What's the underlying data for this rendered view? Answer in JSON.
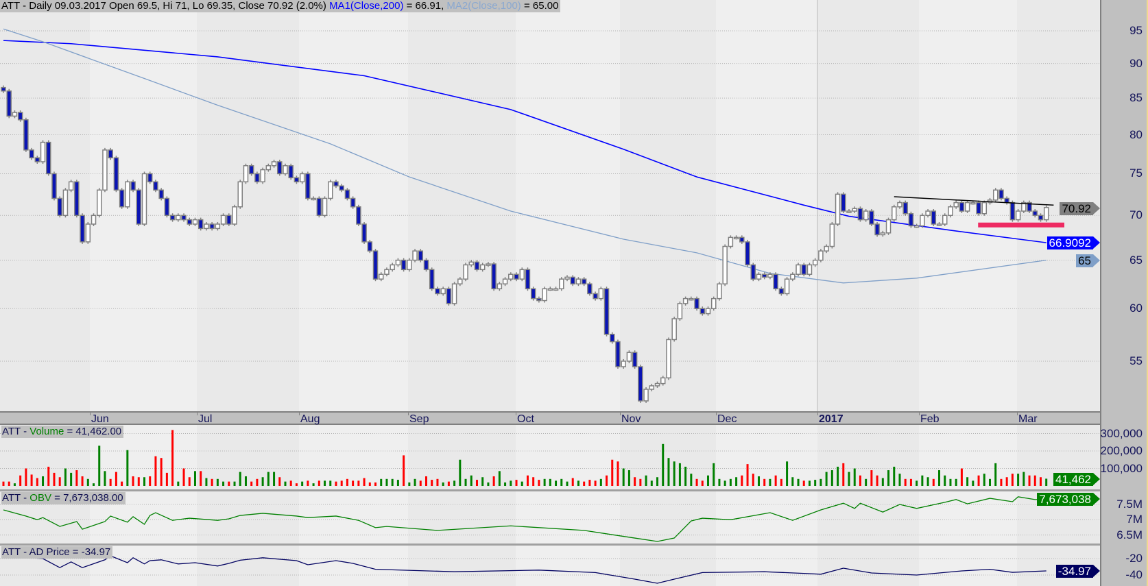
{
  "header": {
    "prefix": "ATT - Daily 09.03.2017 Open 69.5, Hi 71, Lo 69.35, Close 70.92 (2.0%) ",
    "ma1_label": "MA1(Close,200)",
    "ma1_value": " = 66.91, ",
    "ma2_label": "MA2(Close,100)",
    "ma2_value": " = 65.00"
  },
  "months": [
    "Jun",
    "Jul",
    "Aug",
    "Sep",
    "Oct",
    "Nov",
    "Dec",
    "2017",
    "Feb",
    "Mar"
  ],
  "price_axis": {
    "ticks": [
      "95",
      "90",
      "85",
      "80",
      "75",
      "70",
      "65",
      "60",
      "55"
    ]
  },
  "markers": {
    "close": "70.92",
    "ma1": "66.9092",
    "ma2": "65"
  },
  "volume_panel": {
    "prefix": "ATT - ",
    "name": "Volume",
    "value": " = 41,462.00",
    "ticks": [
      "300,000",
      "200,000",
      "100,000"
    ],
    "marker": "41,462"
  },
  "obv_panel": {
    "prefix": "ATT - ",
    "name": "OBV",
    "value": " = 7,673,038.00",
    "ticks": [
      "7.5M",
      "7M",
      "6.5M"
    ],
    "marker": "7,673,038"
  },
  "ad_panel": {
    "title": "ATT - AD Price = -34.97",
    "ticks": [
      "-20",
      "-40"
    ],
    "marker": "-34.97"
  },
  "colors": {
    "down_candle": "#0a14b4",
    "up_candle": "#ffffff",
    "ma1": "#0000ff",
    "ma2": "#7f9fc8",
    "vol_up": "#008000",
    "vol_down": "#ff0000",
    "obv": "#008000",
    "ad": "#000060",
    "support_zone": "#ee2a62",
    "trendline": "#000000"
  },
  "chart_data": [
    {
      "type": "candlestick",
      "title": "ATT - Daily",
      "yscale": "log",
      "ylim": [
        51,
        96
      ],
      "grid": true,
      "open": [
        86.5,
        86,
        82.5,
        83,
        82,
        78,
        77,
        76.5,
        79,
        75,
        72,
        70,
        73,
        74,
        70,
        67,
        69,
        70,
        73,
        78,
        77,
        73,
        71,
        74,
        73,
        69,
        75,
        74,
        73,
        72,
        70,
        69.5,
        70,
        69.5,
        69,
        69.5,
        68.5,
        69,
        68.5,
        69,
        70,
        69,
        71,
        74,
        76,
        75,
        74,
        75.5,
        76,
        76.5,
        75,
        76,
        74.5,
        74,
        75,
        72,
        72,
        70,
        72,
        74,
        73.5,
        73,
        72,
        71,
        69,
        67,
        66,
        63,
        63.5,
        64,
        64.5,
        65,
        64,
        65,
        66,
        65,
        64,
        62,
        61.5,
        62,
        60.5,
        62.5,
        63,
        64.5,
        64.8,
        64,
        64.5,
        64.6,
        62,
        62.5,
        63,
        63.5,
        63,
        64,
        62,
        61,
        60.8,
        62,
        62,
        62,
        63,
        63.2,
        62.5,
        63,
        62.5,
        61.5,
        61,
        62,
        57.5,
        56.8,
        54.5,
        55,
        55.8,
        54.5,
        51.5,
        52.5,
        52.8,
        53,
        53.5,
        57,
        59,
        60.5,
        61,
        61,
        60,
        59.5,
        60,
        61,
        62.5,
        66.5,
        67.5,
        67.5,
        67,
        64.5,
        63,
        63.5,
        63.2,
        63.5,
        62,
        61.5,
        63,
        63.5,
        64.5,
        63.5,
        64.5,
        65,
        66,
        66.5,
        69,
        72.5,
        70.5,
        70.5,
        70.8,
        69.5,
        70.5,
        69,
        67.8,
        68,
        69.5,
        71,
        71.5,
        70.2,
        68.8,
        68.8,
        70,
        70.5,
        69,
        69,
        70,
        71,
        71.5,
        70.5,
        71.5,
        71.5,
        70.2,
        71.5,
        71.8,
        73,
        72,
        71.5,
        69.5,
        70.5,
        71.5,
        70.5,
        70,
        69.5
      ],
      "close": [
        86,
        82.5,
        83,
        82,
        78,
        77,
        76.5,
        79,
        75,
        72,
        70,
        73,
        74,
        70,
        67,
        69,
        70,
        73,
        78,
        77,
        73,
        71,
        74,
        73,
        69,
        75,
        74,
        73,
        72,
        70,
        69.5,
        70,
        69.5,
        69,
        69.5,
        68.5,
        69,
        68.5,
        69,
        70,
        69,
        71,
        74,
        76,
        75,
        74,
        75.5,
        76,
        76.5,
        75,
        76,
        74.5,
        74,
        75,
        72,
        72,
        70,
        72,
        74,
        73.5,
        73,
        72,
        71,
        69,
        67,
        66,
        63,
        63.5,
        64,
        64.5,
        65,
        64,
        65,
        66,
        65,
        64,
        62,
        61.5,
        62,
        60.5,
        62.5,
        63,
        64.5,
        64.8,
        64,
        64.5,
        64.6,
        62,
        62.5,
        63,
        63.5,
        63,
        64,
        62,
        61,
        60.8,
        62,
        62,
        62,
        63,
        63.2,
        62.5,
        63,
        62.5,
        61.5,
        61,
        62,
        57.5,
        56.8,
        54.5,
        55,
        55.8,
        54.5,
        51.5,
        52.5,
        52.8,
        53,
        53.5,
        57,
        59,
        60.5,
        61,
        61,
        60,
        59.5,
        60,
        61,
        62.5,
        66.5,
        67.5,
        67.5,
        67,
        64.5,
        63,
        63.5,
        63.2,
        63.5,
        62,
        61.5,
        63,
        63.5,
        64.5,
        63.5,
        64.5,
        65,
        66,
        66.5,
        69,
        72.5,
        70.5,
        70.5,
        70.8,
        69.5,
        70.5,
        69,
        67.8,
        68,
        69.5,
        71,
        71.5,
        70.2,
        68.8,
        68.8,
        70,
        70.5,
        69,
        69,
        70,
        71,
        71.5,
        70.5,
        71.5,
        71.5,
        70.2,
        71.5,
        71.8,
        73,
        72,
        71.5,
        69.5,
        70.5,
        71.5,
        70.5,
        70,
        69.5,
        70.92
      ],
      "series": [
        {
          "name": "MA1(Close,200)",
          "points": [
            [
              0,
              93.5
            ],
            [
              12,
              93.0
            ],
            [
              38,
              91.0
            ],
            [
              64,
              88.2
            ],
            [
              90,
              83.4
            ],
            [
              110,
              78.1
            ],
            [
              123,
              74.6
            ],
            [
              142,
              71.2
            ],
            [
              150,
              69.9
            ],
            [
              168,
              68.3
            ],
            [
              185,
              66.91
            ]
          ]
        },
        {
          "name": "MA2(Close,100)",
          "points": [
            [
              0,
              95.3
            ],
            [
              7,
              93.3
            ],
            [
              25,
              87.8
            ],
            [
              38,
              84.0
            ],
            [
              58,
              78.8
            ],
            [
              72,
              74.6
            ],
            [
              90,
              70.5
            ],
            [
              110,
              67.3
            ],
            [
              123,
              65.8
            ],
            [
              136,
              63.6
            ],
            [
              149,
              62.6
            ],
            [
              162,
              63.1
            ],
            [
              185,
              65.0
            ]
          ]
        }
      ],
      "annotations": {
        "trendline": [
          [
            158,
            72.2
          ],
          [
            186.3,
            71.2
          ]
        ],
        "support_zone": {
          "from": 172.9,
          "to": 188.2,
          "price": 68.9
        }
      }
    },
    {
      "type": "bar",
      "title": "Volume",
      "ylim": [
        0,
        330000
      ],
      "unit": "thousands",
      "values": [
        25,
        25,
        15,
        60,
        100,
        65,
        45,
        55,
        110,
        75,
        50,
        100,
        75,
        90,
        55,
        40,
        15,
        230,
        85,
        40,
        80,
        25,
        205,
        55,
        50,
        50,
        55,
        170,
        160,
        75,
        320,
        25,
        100,
        50,
        85,
        85,
        45,
        40,
        40,
        25,
        25,
        25,
        80,
        55,
        25,
        40,
        50,
        80,
        80,
        50,
        25,
        30,
        15,
        25,
        30,
        15,
        30,
        30,
        30,
        25,
        30,
        40,
        30,
        30,
        45,
        20,
        20,
        40,
        40,
        40,
        35,
        175,
        20,
        40,
        30,
        55,
        35,
        40,
        20,
        25,
        30,
        150,
        40,
        60,
        35,
        50,
        20,
        55,
        85,
        20,
        30,
        35,
        25,
        60,
        50,
        35,
        40,
        40,
        30,
        40,
        25,
        45,
        30,
        25,
        35,
        30,
        40,
        60,
        150,
        140,
        100,
        90,
        50,
        40,
        60,
        30,
        50,
        240,
        160,
        140,
        130,
        110,
        70,
        40,
        30,
        60,
        130,
        40,
        30,
        40,
        50,
        60,
        125,
        70,
        55,
        40,
        40,
        60,
        40,
        140,
        50,
        40,
        30,
        30,
        35,
        40,
        80,
        90,
        110,
        130,
        80,
        100,
        60,
        40,
        90,
        60,
        45,
        90,
        110,
        70,
        40,
        40,
        30,
        60,
        50,
        40,
        90,
        60,
        40,
        40,
        100,
        50,
        30,
        60,
        70,
        40,
        130,
        40,
        50,
        70,
        70,
        80,
        60,
        60,
        50,
        41.462
      ]
    },
    {
      "type": "line",
      "title": "OBV",
      "unit": "millions",
      "points": [
        [
          0,
          7.32
        ],
        [
          4,
          7.12
        ],
        [
          6,
          7.0
        ],
        [
          7,
          7.07
        ],
        [
          10,
          6.78
        ],
        [
          13,
          6.94
        ],
        [
          14,
          6.69
        ],
        [
          18,
          6.94
        ],
        [
          19,
          7.12
        ],
        [
          22,
          6.92
        ],
        [
          23,
          7.1
        ],
        [
          25,
          6.85
        ],
        [
          26,
          7.14
        ],
        [
          27,
          7.23
        ],
        [
          30,
          6.98
        ],
        [
          33,
          7.05
        ],
        [
          38,
          6.98
        ],
        [
          40,
          7.03
        ],
        [
          42,
          7.14
        ],
        [
          46,
          7.21
        ],
        [
          52,
          7.12
        ],
        [
          54,
          7.07
        ],
        [
          59,
          7.12
        ],
        [
          63,
          6.98
        ],
        [
          66,
          6.74
        ],
        [
          68,
          6.78
        ],
        [
          77,
          6.65
        ],
        [
          90,
          6.8
        ],
        [
          103,
          6.65
        ],
        [
          112,
          6.4
        ],
        [
          116,
          6.29
        ],
        [
          119,
          6.4
        ],
        [
          122,
          6.96
        ],
        [
          124,
          7.05
        ],
        [
          129,
          7.0
        ],
        [
          136,
          7.23
        ],
        [
          140,
          6.98
        ],
        [
          145,
          7.32
        ],
        [
          149,
          7.54
        ],
        [
          151,
          7.37
        ],
        [
          152,
          7.54
        ],
        [
          156,
          7.25
        ],
        [
          159,
          7.5
        ],
        [
          162,
          7.37
        ],
        [
          167,
          7.57
        ],
        [
          169,
          7.66
        ],
        [
          171,
          7.52
        ],
        [
          175,
          7.7
        ],
        [
          179,
          7.59
        ],
        [
          180,
          7.75
        ],
        [
          183,
          7.66
        ],
        [
          185,
          7.673
        ]
      ]
    },
    {
      "type": "line",
      "title": "AD Price",
      "points": [
        [
          3,
          -18.3
        ],
        [
          7,
          -20
        ],
        [
          10,
          -31
        ],
        [
          12,
          -24
        ],
        [
          14,
          -31
        ],
        [
          18,
          -21.5
        ],
        [
          19,
          -16.7
        ],
        [
          22,
          -25
        ],
        [
          23,
          -19
        ],
        [
          25,
          -26.5
        ],
        [
          26,
          -22.5
        ],
        [
          28,
          -21.5
        ],
        [
          31,
          -26.5
        ],
        [
          34,
          -25
        ],
        [
          38,
          -29
        ],
        [
          40,
          -25.8
        ],
        [
          42,
          -22
        ],
        [
          46,
          -19
        ],
        [
          52,
          -22.5
        ],
        [
          54,
          -27.5
        ],
        [
          59,
          -22.5
        ],
        [
          62,
          -25.8
        ],
        [
          66,
          -33
        ],
        [
          80,
          -36
        ],
        [
          95,
          -34
        ],
        [
          105,
          -37
        ],
        [
          112,
          -45
        ],
        [
          116,
          -50
        ],
        [
          119,
          -45
        ],
        [
          124,
          -37
        ],
        [
          135,
          -36
        ],
        [
          142,
          -38
        ],
        [
          145,
          -39
        ],
        [
          149,
          -31.7
        ],
        [
          154,
          -37.5
        ],
        [
          162,
          -40
        ],
        [
          170,
          -35
        ],
        [
          175,
          -33
        ],
        [
          179,
          -36.7
        ],
        [
          185,
          -34.97
        ]
      ]
    }
  ]
}
